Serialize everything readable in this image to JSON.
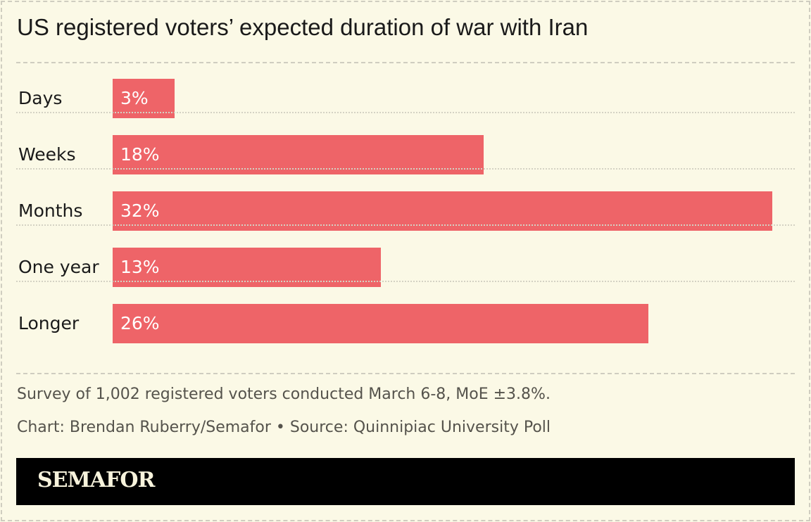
{
  "chart_data": {
    "type": "bar",
    "orientation": "horizontal",
    "title": "US registered voters’ expected duration of war with Iran",
    "categories": [
      "Days",
      "Weeks",
      "Months",
      "One year",
      "Longer"
    ],
    "values": [
      3,
      18,
      32,
      13,
      26
    ],
    "value_labels": [
      "3%",
      "18%",
      "32%",
      "13%",
      "26%"
    ],
    "unit": "%",
    "bar_color": "#ee6468",
    "grid": false
  },
  "footer": {
    "note": "Survey of 1,002 registered voters conducted March 6-8, MoE ±3.8%.",
    "credit": "Chart: Brendan Ruberry/Semafor • Source: Quinnipiac University Poll",
    "logo": "SEMAFOR"
  }
}
